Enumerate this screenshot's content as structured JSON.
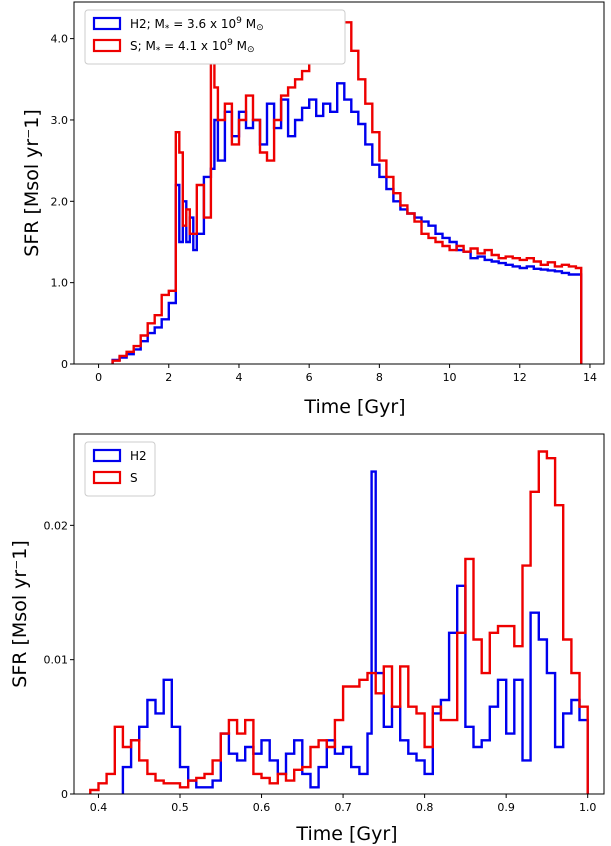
{
  "chart_data": [
    {
      "type": "line",
      "drawstyle": "steps",
      "xlabel": "Time [Gyr]",
      "ylabel": "SFR [Msol yr⁻1]",
      "xlim": [
        -0.7,
        14.4
      ],
      "ylim": [
        0,
        4.45
      ],
      "xticks": [
        0,
        2,
        4,
        6,
        8,
        10,
        12,
        14
      ],
      "xtick_labels": [
        "0",
        "2",
        "4",
        "6",
        "8",
        "10",
        "12",
        "14"
      ],
      "yticks": [
        0,
        1.0,
        2.0,
        3.0,
        4.0
      ],
      "ytick_labels": [
        "0",
        "1.0",
        "2.0",
        "3.0",
        "4.0"
      ],
      "legend": {
        "placement": "top-left",
        "entries": [
          {
            "name": "H2",
            "label_prefix": "H2; M",
            "label_sub": "*",
            "label_mid": " = 3.6 x 10",
            "label_sup": "9",
            "label_unit": " M",
            "label_unit_sub": "⊙"
          },
          {
            "name": "S",
            "label_prefix": "S;   M",
            "label_sub": "*",
            "label_mid": " = 4.1 x 10",
            "label_sup": "9",
            "label_unit": " M",
            "label_unit_sub": "⊙"
          }
        ]
      },
      "series": [
        {
          "name": "H2",
          "color": "#0000ee",
          "x": [
            0.4,
            0.6,
            0.8,
            1.0,
            1.2,
            1.4,
            1.6,
            1.8,
            2.0,
            2.2,
            2.3,
            2.4,
            2.5,
            2.6,
            2.7,
            2.8,
            3.0,
            3.2,
            3.3,
            3.4,
            3.6,
            3.8,
            4.0,
            4.2,
            4.4,
            4.6,
            4.8,
            5.0,
            5.2,
            5.4,
            5.6,
            5.8,
            6.0,
            6.2,
            6.4,
            6.6,
            6.8,
            7.0,
            7.2,
            7.4,
            7.6,
            7.8,
            8.0,
            8.2,
            8.4,
            8.6,
            8.8,
            9.0,
            9.2,
            9.4,
            9.6,
            9.8,
            10.0,
            10.2,
            10.4,
            10.6,
            10.8,
            11.0,
            11.2,
            11.4,
            11.6,
            11.8,
            12.0,
            12.2,
            12.4,
            12.6,
            12.8,
            13.0,
            13.2,
            13.4,
            13.6,
            13.75
          ],
          "y": [
            0.05,
            0.08,
            0.12,
            0.18,
            0.28,
            0.38,
            0.45,
            0.55,
            0.75,
            2.2,
            1.5,
            2.0,
            1.5,
            1.8,
            1.4,
            1.6,
            2.3,
            2.4,
            3.0,
            2.5,
            3.1,
            2.8,
            3.1,
            2.9,
            3.0,
            2.7,
            3.2,
            2.9,
            3.25,
            2.8,
            3.0,
            3.15,
            3.25,
            3.05,
            3.2,
            3.1,
            3.45,
            3.25,
            3.1,
            2.95,
            2.7,
            2.45,
            2.3,
            2.15,
            2.0,
            1.9,
            1.85,
            1.8,
            1.75,
            1.7,
            1.6,
            1.55,
            1.5,
            1.4,
            1.38,
            1.3,
            1.32,
            1.28,
            1.26,
            1.24,
            1.22,
            1.2,
            1.18,
            1.2,
            1.17,
            1.16,
            1.15,
            1.14,
            1.12,
            1.1,
            1.1,
            0
          ]
        },
        {
          "name": "S",
          "color": "#ee0000",
          "x": [
            0.4,
            0.6,
            0.8,
            1.0,
            1.2,
            1.4,
            1.6,
            1.8,
            2.0,
            2.2,
            2.3,
            2.4,
            2.5,
            2.6,
            2.8,
            3.0,
            3.2,
            3.3,
            3.4,
            3.6,
            3.8,
            4.0,
            4.2,
            4.4,
            4.6,
            4.8,
            5.0,
            5.2,
            5.4,
            5.6,
            5.8,
            6.0,
            6.2,
            6.4,
            6.6,
            6.8,
            7.0,
            7.2,
            7.4,
            7.6,
            7.8,
            8.0,
            8.2,
            8.4,
            8.6,
            8.8,
            9.0,
            9.2,
            9.4,
            9.6,
            9.8,
            10.0,
            10.2,
            10.4,
            10.6,
            10.8,
            11.0,
            11.2,
            11.4,
            11.6,
            11.8,
            12.0,
            12.2,
            12.4,
            12.6,
            12.8,
            13.0,
            13.2,
            13.4,
            13.6,
            13.75
          ],
          "y": [
            0.04,
            0.1,
            0.15,
            0.22,
            0.35,
            0.5,
            0.6,
            0.85,
            0.9,
            2.85,
            2.6,
            1.7,
            1.9,
            1.6,
            2.2,
            1.8,
            3.7,
            3.4,
            3.0,
            3.2,
            2.7,
            3.0,
            3.3,
            3.0,
            2.6,
            2.5,
            3.0,
            3.3,
            3.4,
            3.5,
            3.6,
            3.7,
            3.75,
            4.0,
            3.85,
            4.3,
            4.2,
            3.85,
            3.5,
            3.2,
            2.85,
            2.5,
            2.3,
            2.1,
            1.95,
            1.85,
            1.75,
            1.6,
            1.55,
            1.5,
            1.45,
            1.4,
            1.45,
            1.38,
            1.42,
            1.36,
            1.4,
            1.34,
            1.3,
            1.32,
            1.3,
            1.28,
            1.3,
            1.26,
            1.22,
            1.25,
            1.2,
            1.22,
            1.2,
            1.18,
            0
          ]
        }
      ]
    },
    {
      "type": "line",
      "drawstyle": "steps",
      "xlabel": "Time [Gyr]",
      "ylabel": "SFR [Msol yr⁻1]",
      "xlim": [
        0.37,
        1.02
      ],
      "ylim": [
        0,
        0.0268
      ],
      "xticks": [
        0.4,
        0.5,
        0.6,
        0.7,
        0.8,
        0.9,
        1.0
      ],
      "xtick_labels": [
        "0.4",
        "0.5",
        "0.6",
        "0.7",
        "0.8",
        "0.9",
        "1.0"
      ],
      "yticks": [
        0,
        0.01,
        0.02
      ],
      "ytick_labels": [
        "0",
        "0.01",
        "0.02"
      ],
      "legend": {
        "placement": "top-left",
        "entries": [
          {
            "name": "H2",
            "label_prefix": "H2"
          },
          {
            "name": "S",
            "label_prefix": "S"
          }
        ]
      },
      "series": [
        {
          "name": "H2",
          "color": "#0000ee",
          "x": [
            0.43,
            0.44,
            0.45,
            0.46,
            0.47,
            0.48,
            0.49,
            0.5,
            0.51,
            0.52,
            0.53,
            0.54,
            0.55,
            0.56,
            0.57,
            0.58,
            0.59,
            0.6,
            0.61,
            0.62,
            0.63,
            0.64,
            0.65,
            0.66,
            0.67,
            0.68,
            0.69,
            0.7,
            0.71,
            0.72,
            0.73,
            0.735,
            0.74,
            0.75,
            0.76,
            0.77,
            0.78,
            0.79,
            0.8,
            0.81,
            0.82,
            0.83,
            0.84,
            0.85,
            0.86,
            0.87,
            0.88,
            0.89,
            0.9,
            0.91,
            0.92,
            0.93,
            0.94,
            0.95,
            0.96,
            0.97,
            0.98,
            0.99,
            1.0
          ],
          "y": [
            0.002,
            0.004,
            0.005,
            0.007,
            0.006,
            0.0085,
            0.005,
            0.002,
            0.001,
            0.0005,
            0.0005,
            0.001,
            0.0045,
            0.003,
            0.0025,
            0.0035,
            0.003,
            0.004,
            0.0025,
            0.0015,
            0.003,
            0.004,
            0.0015,
            0.0005,
            0.002,
            0.004,
            0.003,
            0.0035,
            0.002,
            0.0015,
            0.0045,
            0.024,
            0.009,
            0.005,
            0.0065,
            0.004,
            0.003,
            0.0025,
            0.0015,
            0.006,
            0.007,
            0.012,
            0.0155,
            0.005,
            0.0035,
            0.004,
            0.0065,
            0.0085,
            0.0045,
            0.0085,
            0.0025,
            0.0135,
            0.0115,
            0.009,
            0.0035,
            0.006,
            0.007,
            0.0055,
            0
          ]
        },
        {
          "name": "S",
          "color": "#ee0000",
          "x": [
            0.39,
            0.4,
            0.41,
            0.42,
            0.43,
            0.44,
            0.45,
            0.46,
            0.47,
            0.48,
            0.49,
            0.5,
            0.51,
            0.52,
            0.53,
            0.54,
            0.55,
            0.56,
            0.57,
            0.58,
            0.59,
            0.6,
            0.61,
            0.62,
            0.63,
            0.64,
            0.65,
            0.66,
            0.67,
            0.68,
            0.69,
            0.7,
            0.71,
            0.72,
            0.73,
            0.74,
            0.75,
            0.76,
            0.77,
            0.78,
            0.79,
            0.8,
            0.81,
            0.82,
            0.83,
            0.84,
            0.85,
            0.86,
            0.87,
            0.88,
            0.89,
            0.9,
            0.91,
            0.92,
            0.93,
            0.94,
            0.95,
            0.96,
            0.97,
            0.98,
            0.99,
            1.0
          ],
          "y": [
            0.0003,
            0.0008,
            0.0015,
            0.005,
            0.0035,
            0.004,
            0.0025,
            0.0015,
            0.001,
            0.0008,
            0.0008,
            0.0005,
            0.001,
            0.0012,
            0.0015,
            0.0025,
            0.0045,
            0.0055,
            0.0045,
            0.0055,
            0.0015,
            0.0012,
            0.0008,
            0.0015,
            0.001,
            0.0018,
            0.002,
            0.0035,
            0.004,
            0.0035,
            0.0055,
            0.008,
            0.008,
            0.0085,
            0.009,
            0.0075,
            0.0095,
            0.0065,
            0.0095,
            0.0065,
            0.006,
            0.0035,
            0.0065,
            0.0055,
            0.0055,
            0.012,
            0.0175,
            0.0115,
            0.009,
            0.012,
            0.0125,
            0.0125,
            0.011,
            0.017,
            0.0225,
            0.0255,
            0.025,
            0.0215,
            0.0115,
            0.009,
            0.0065,
            0
          ]
        }
      ]
    }
  ]
}
